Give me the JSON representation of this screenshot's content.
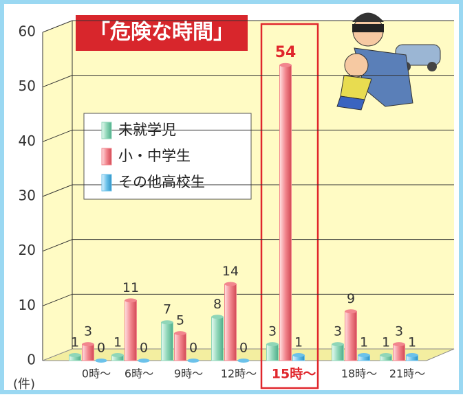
{
  "chart_data": {
    "type": "bar",
    "title": "「危険な時間」",
    "y_label": "(件)",
    "categories": [
      "0時～",
      "6時～",
      "9時～",
      "12時～",
      "15時～",
      "18時～",
      "21時～"
    ],
    "series": [
      {
        "name": "未就学児",
        "color": "#8fd6b8",
        "values": [
          1,
          1,
          7,
          8,
          3,
          3,
          1
        ]
      },
      {
        "name": "小・中学生",
        "color": "#f2868e",
        "values": [
          3,
          11,
          5,
          14,
          54,
          9,
          3
        ]
      },
      {
        "name": "その他高校生",
        "color": "#6cc2ea",
        "values": [
          0,
          0,
          0,
          0,
          1,
          1,
          1
        ]
      }
    ],
    "ylim": [
      0,
      60
    ],
    "yticks": [
      0,
      10,
      20,
      30,
      40,
      50,
      60
    ],
    "grid": true
  }
}
